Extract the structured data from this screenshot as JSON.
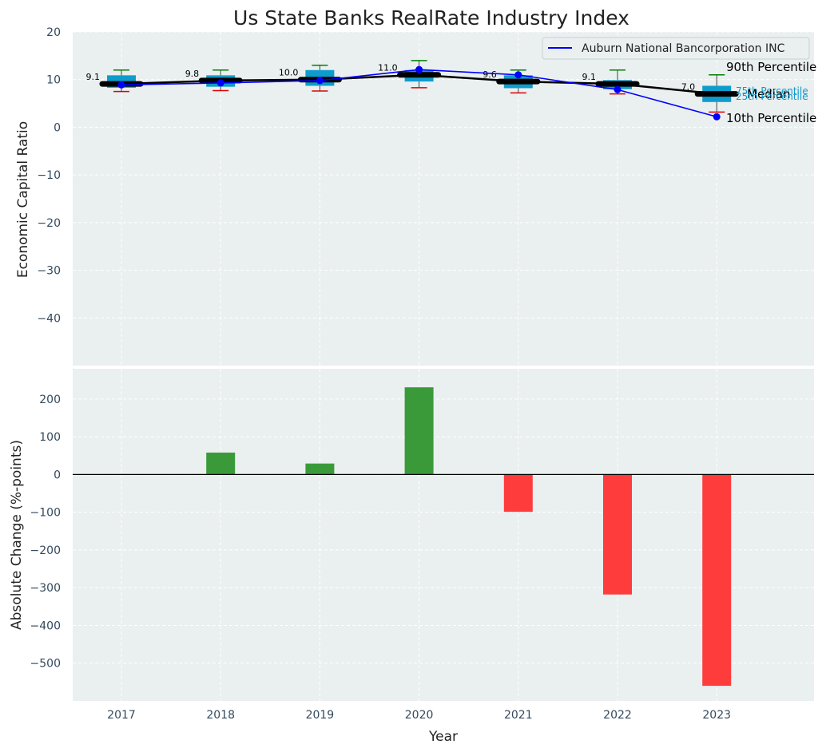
{
  "colors": {
    "panel_bg": "#eaeff0",
    "grid": "#ffffff",
    "box_fill": "#0e9ccc",
    "median": "#000000",
    "whisker_top": "#008000",
    "whisker_bottom": "#e00000",
    "company_line": "#0000ff",
    "positive_bar": "#3a9a3a",
    "negative_bar": "#ff3c3c",
    "tick_text": "#34495e",
    "label_text": "#222222",
    "pct_label": "#0e9ccc"
  },
  "chart_data": [
    {
      "type": "box",
      "title": "Us State Banks RealRate Industry Index",
      "xlabel": "",
      "ylabel": "Economic Capital Ratio",
      "ylim": [
        -50,
        20
      ],
      "yticks": [
        20,
        10,
        0,
        -10,
        -20,
        -30,
        -40
      ],
      "ytick_labels": [
        "20",
        "10",
        "0",
        "−10",
        "−20",
        "−30",
        "−40"
      ],
      "categories": [
        "2017",
        "2018",
        "2019",
        "2020",
        "2021",
        "2022",
        "2023"
      ],
      "p10": [
        7.5,
        7.7,
        7.6,
        8.3,
        7.2,
        7.0,
        3.2
      ],
      "p25": [
        8.3,
        8.5,
        8.7,
        9.6,
        8.2,
        8.0,
        5.3
      ],
      "median": [
        9.1,
        9.8,
        10.0,
        11.0,
        9.6,
        9.1,
        7.0
      ],
      "p75": [
        10.9,
        10.9,
        12.0,
        12.0,
        10.9,
        9.9,
        8.7
      ],
      "p90": [
        12.0,
        12.0,
        13.0,
        14.0,
        12.0,
        12.0,
        11.0
      ],
      "median_labels": [
        "9.1",
        "9.8",
        "10.0",
        "11.0",
        "9.6",
        "9.1",
        "7.0"
      ],
      "series": [
        {
          "name": "Auburn National Bancorporation INC",
          "values": [
            8.9,
            9.3,
            9.8,
            12.1,
            11.0,
            7.9,
            2.2
          ]
        }
      ],
      "legend": "top-right",
      "annotations": {
        "p90": "90th Percentile",
        "p75": "75th Percentile",
        "median": "Median",
        "p25": "25th Percentile",
        "p10": "10th Percentile"
      },
      "grid": true
    },
    {
      "type": "bar",
      "xlabel": "Year",
      "ylabel": "Absolute Change (%-points)",
      "ylim": [
        -600,
        280
      ],
      "yticks": [
        200,
        100,
        0,
        -100,
        -200,
        -300,
        -400,
        -500
      ],
      "ytick_labels": [
        "200",
        "100",
        "0",
        "−100",
        "−200",
        "−300",
        "−400",
        "−500"
      ],
      "categories": [
        "2017",
        "2018",
        "2019",
        "2020",
        "2021",
        "2022",
        "2023"
      ],
      "values": [
        0,
        58,
        29,
        231,
        -99,
        -318,
        -560
      ],
      "grid": true
    }
  ]
}
